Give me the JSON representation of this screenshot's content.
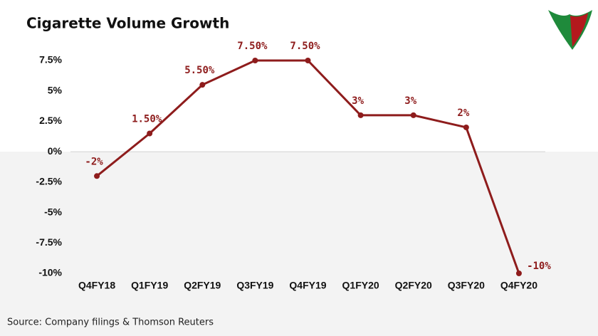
{
  "chart_data": {
    "type": "line",
    "title": "Cigarette Volume Growth",
    "categories": [
      "Q4FY18",
      "Q1FY19",
      "Q2FY19",
      "Q3FY19",
      "Q4FY19",
      "Q1FY20",
      "Q2FY20",
      "Q3FY20",
      "Q4FY20"
    ],
    "series": [
      {
        "name": "Cigarette Volume Growth",
        "color": "#8e1c1c",
        "values": [
          -2,
          1.5,
          5.5,
          7.5,
          7.5,
          3,
          3,
          2,
          -10
        ],
        "value_labels": [
          "-2%",
          "1.50%",
          "5.50%",
          "7.50%",
          "7.50%",
          "3%",
          "3%",
          "2%",
          "-10%"
        ]
      }
    ],
    "ylim": [
      -10,
      8.5
    ],
    "yticks": [
      {
        "value": 7.5,
        "label": "7.5%"
      },
      {
        "value": 5,
        "label": "5%"
      },
      {
        "value": 2.5,
        "label": "2.5%"
      },
      {
        "value": 0,
        "label": "0%"
      },
      {
        "value": -2.5,
        "label": "-2.5%"
      },
      {
        "value": -5,
        "label": "-5%"
      },
      {
        "value": -7.5,
        "label": "-7.5%"
      },
      {
        "value": -10,
        "label": "-10%"
      }
    ],
    "grid": false,
    "source": "Source: Company filings & Thomson Reuters"
  }
}
